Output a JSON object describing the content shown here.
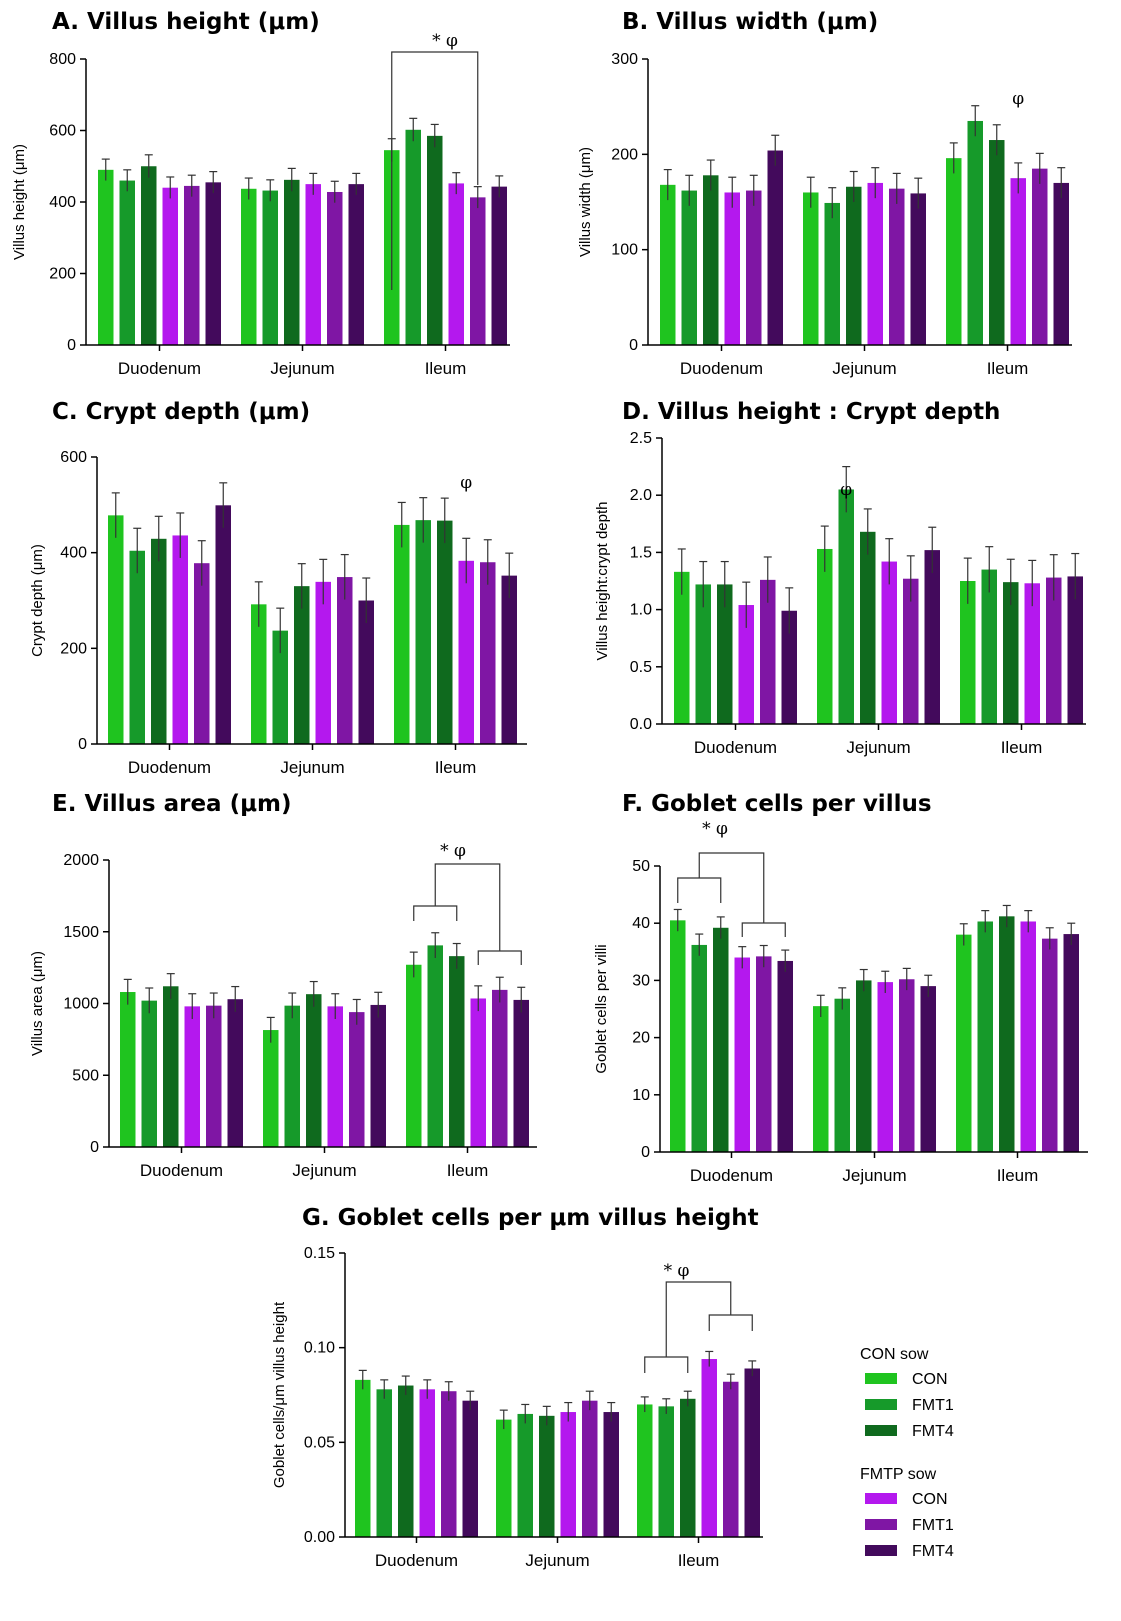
{
  "colors": {
    "CON sow CON": "#1fc41f",
    "CON sow FMT1": "#169a2a",
    "CON sow FMT4": "#0f6a1e",
    "FMTP sow CON": "#b418ee",
    "FMTP sow FMT1": "#7f16a4",
    "FMTP sow FMT4": "#430a5c"
  },
  "legend": {
    "groups": [
      {
        "title": "CON sow",
        "items": [
          "CON",
          "FMT1",
          "FMT4"
        ]
      },
      {
        "title": "FMTP sow",
        "items": [
          "CON",
          "FMT1",
          "FMT4"
        ]
      }
    ]
  },
  "chart_data": [
    {
      "id": "A",
      "type": "bar",
      "title": "A. Villus height (μm)",
      "ylabel": "Villus height (μm)",
      "categories": [
        "Duodenum",
        "Jejunum",
        "Ileum"
      ],
      "ylim": [
        0,
        800
      ],
      "yticks": [
        0,
        200,
        400,
        600,
        800
      ],
      "series": [
        {
          "values": [
            490,
            437,
            545
          ],
          "err": [
            30,
            30,
            32
          ]
        },
        {
          "values": [
            460,
            432,
            602
          ],
          "err": [
            30,
            30,
            32
          ]
        },
        {
          "values": [
            500,
            462,
            585
          ],
          "err": [
            32,
            32,
            32
          ]
        },
        {
          "values": [
            440,
            450,
            452
          ],
          "err": [
            30,
            30,
            30
          ]
        },
        {
          "values": [
            445,
            428,
            413
          ],
          "err": [
            30,
            30,
            30
          ]
        },
        {
          "values": [
            455,
            450,
            443
          ],
          "err": [
            30,
            30,
            30
          ]
        }
      ],
      "annotations": [
        {
          "text": "* φ"
        }
      ]
    },
    {
      "id": "B",
      "type": "bar",
      "title": "B. Villus width (μm)",
      "ylabel": "Villus width (μm)",
      "categories": [
        "Duodenum",
        "Jejunum",
        "Ileum"
      ],
      "ylim": [
        0,
        300
      ],
      "yticks": [
        0,
        100,
        200,
        300
      ],
      "series": [
        {
          "values": [
            168,
            160,
            196
          ],
          "err": [
            16,
            16,
            16
          ]
        },
        {
          "values": [
            162,
            149,
            235
          ],
          "err": [
            16,
            16,
            16
          ]
        },
        {
          "values": [
            178,
            166,
            215
          ],
          "err": [
            16,
            16,
            16
          ]
        },
        {
          "values": [
            160,
            170,
            175
          ],
          "err": [
            16,
            16,
            16
          ]
        },
        {
          "values": [
            162,
            164,
            185
          ],
          "err": [
            16,
            16,
            16
          ]
        },
        {
          "values": [
            204,
            159,
            170
          ],
          "err": [
            16,
            16,
            16
          ]
        }
      ],
      "annotations": [
        {
          "text": "φ"
        }
      ]
    },
    {
      "id": "C",
      "type": "bar",
      "title": "C. Crypt depth (μm)",
      "ylabel": "Crypt depth (μm)",
      "categories": [
        "Duodenum",
        "Jejunum",
        "Ileum"
      ],
      "ylim": [
        0,
        600
      ],
      "yticks": [
        0,
        200,
        400,
        600
      ],
      "series": [
        {
          "values": [
            478,
            292,
            458
          ],
          "err": [
            47,
            47,
            47
          ]
        },
        {
          "values": [
            404,
            237,
            468
          ],
          "err": [
            47,
            47,
            47
          ]
        },
        {
          "values": [
            429,
            330,
            467
          ],
          "err": [
            47,
            47,
            47
          ]
        },
        {
          "values": [
            436,
            339,
            383
          ],
          "err": [
            47,
            47,
            47
          ]
        },
        {
          "values": [
            378,
            349,
            380
          ],
          "err": [
            47,
            47,
            47
          ]
        },
        {
          "values": [
            499,
            300,
            352
          ],
          "err": [
            47,
            47,
            47
          ]
        }
      ],
      "annotations": [
        {
          "text": "φ"
        }
      ]
    },
    {
      "id": "D",
      "type": "bar",
      "title": "D. Villus height : Crypt depth",
      "ylabel": "Villus height:crypt depth",
      "categories": [
        "Duodenum",
        "Jejunum",
        "Ileum"
      ],
      "ylim": [
        0,
        2.5
      ],
      "yticks": [
        0.0,
        0.5,
        1.0,
        1.5,
        2.0,
        2.5
      ],
      "series": [
        {
          "values": [
            1.33,
            1.53,
            1.25
          ],
          "err": [
            0.2,
            0.2,
            0.2
          ]
        },
        {
          "values": [
            1.22,
            2.05,
            1.35
          ],
          "err": [
            0.2,
            0.2,
            0.2
          ]
        },
        {
          "values": [
            1.22,
            1.68,
            1.24
          ],
          "err": [
            0.2,
            0.2,
            0.2
          ]
        },
        {
          "values": [
            1.04,
            1.42,
            1.23
          ],
          "err": [
            0.2,
            0.2,
            0.2
          ]
        },
        {
          "values": [
            1.26,
            1.27,
            1.28
          ],
          "err": [
            0.2,
            0.2,
            0.2
          ]
        },
        {
          "values": [
            0.99,
            1.52,
            1.29
          ],
          "err": [
            0.2,
            0.2,
            0.2
          ]
        }
      ],
      "annotations": [
        {
          "text": "φ"
        }
      ]
    },
    {
      "id": "E",
      "type": "bar",
      "title": "E. Villus area (μm)",
      "ylabel": "Villus area (μm)",
      "categories": [
        "Duodenum",
        "Jejunum",
        "Ileum"
      ],
      "ylim": [
        0,
        2000
      ],
      "yticks": [
        0,
        500,
        1000,
        1500,
        2000
      ],
      "series": [
        {
          "values": [
            1080,
            815,
            1270
          ],
          "err": [
            88,
            88,
            88
          ]
        },
        {
          "values": [
            1020,
            985,
            1405
          ],
          "err": [
            88,
            88,
            88
          ]
        },
        {
          "values": [
            1120,
            1065,
            1330
          ],
          "err": [
            88,
            88,
            88
          ]
        },
        {
          "values": [
            980,
            980,
            1035
          ],
          "err": [
            88,
            88,
            88
          ]
        },
        {
          "values": [
            985,
            940,
            1095
          ],
          "err": [
            88,
            88,
            88
          ]
        },
        {
          "values": [
            1030,
            990,
            1025
          ],
          "err": [
            88,
            88,
            88
          ]
        }
      ],
      "annotations": [
        {
          "text": "* φ"
        }
      ]
    },
    {
      "id": "F",
      "type": "bar",
      "title": "F. Goblet cells per villus",
      "ylabel": "Goblet cells per villi",
      "categories": [
        "Duodenum",
        "Jejunum",
        "Ileum"
      ],
      "ylim": [
        0,
        50
      ],
      "yticks": [
        0,
        10,
        20,
        30,
        40,
        50
      ],
      "series": [
        {
          "values": [
            40.5,
            25.5,
            38.0
          ],
          "err": [
            1.9,
            1.9,
            1.9
          ]
        },
        {
          "values": [
            36.2,
            26.8,
            40.3
          ],
          "err": [
            1.9,
            1.9,
            1.9
          ]
        },
        {
          "values": [
            39.2,
            30.0,
            41.2
          ],
          "err": [
            1.9,
            1.9,
            1.9
          ]
        },
        {
          "values": [
            34.0,
            29.7,
            40.3
          ],
          "err": [
            1.9,
            1.9,
            1.9
          ]
        },
        {
          "values": [
            34.2,
            30.2,
            37.3
          ],
          "err": [
            1.9,
            1.9,
            1.9
          ]
        },
        {
          "values": [
            33.4,
            29.0,
            38.1
          ],
          "err": [
            1.9,
            1.9,
            1.9
          ]
        }
      ],
      "annotations": [
        {
          "text": "* φ"
        }
      ]
    },
    {
      "id": "G",
      "type": "bar",
      "title": "G. Goblet cells per μm villus height",
      "ylabel": "Goblet cells/μm villus height",
      "categories": [
        "Duodenum",
        "Jejunum",
        "Ileum"
      ],
      "ylim": [
        0,
        0.15
      ],
      "yticks": [
        0.0,
        0.05,
        0.1,
        0.15
      ],
      "series": [
        {
          "values": [
            0.083,
            0.062,
            0.07
          ],
          "err": [
            0.005,
            0.005,
            0.004
          ]
        },
        {
          "values": [
            0.078,
            0.065,
            0.069
          ],
          "err": [
            0.005,
            0.005,
            0.004
          ]
        },
        {
          "values": [
            0.08,
            0.064,
            0.073
          ],
          "err": [
            0.005,
            0.005,
            0.004
          ]
        },
        {
          "values": [
            0.078,
            0.066,
            0.094
          ],
          "err": [
            0.005,
            0.005,
            0.004
          ]
        },
        {
          "values": [
            0.077,
            0.072,
            0.082
          ],
          "err": [
            0.005,
            0.005,
            0.004
          ]
        },
        {
          "values": [
            0.072,
            0.066,
            0.089
          ],
          "err": [
            0.005,
            0.005,
            0.004
          ]
        }
      ],
      "annotations": [
        {
          "text": "* φ"
        }
      ]
    }
  ]
}
